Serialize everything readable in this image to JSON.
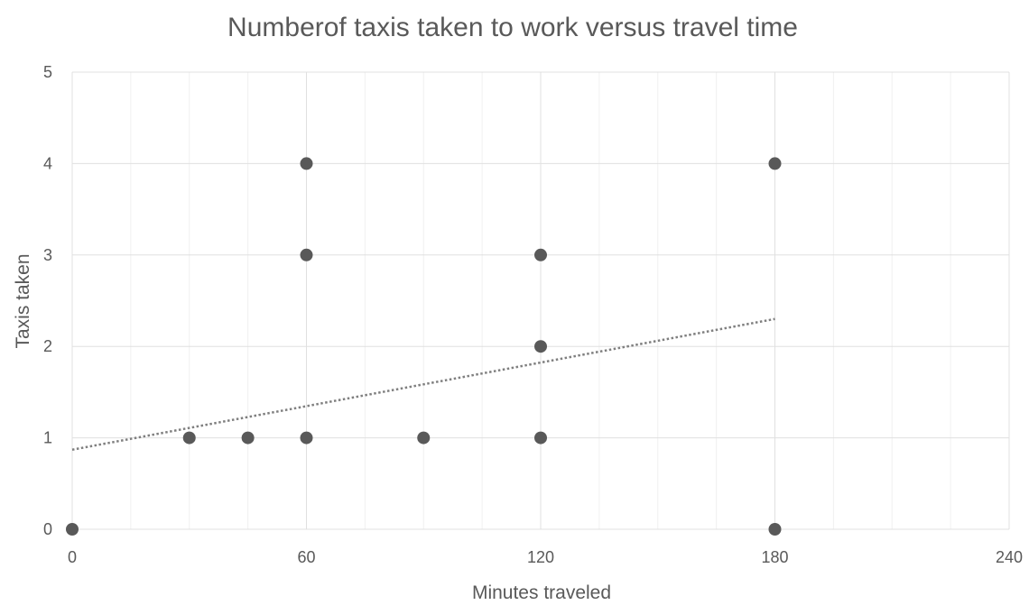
{
  "chart_data": {
    "type": "scatter",
    "title": "Numberof taxis taken to work versus travel time",
    "xlabel": "Minutes traveled",
    "ylabel": "Taxis taken",
    "xlim": [
      0,
      240
    ],
    "ylim": [
      0,
      5
    ],
    "x_ticks": [
      "0",
      "60",
      "120",
      "180",
      "240"
    ],
    "y_ticks": [
      "0",
      "1",
      "2",
      "3",
      "4",
      "5"
    ],
    "grid": true,
    "legend": "none",
    "colors": {
      "marker": "#595959",
      "trendline": "#7f7f7f",
      "grid": "#e0e0e0",
      "text": "#595959"
    },
    "series": [
      {
        "points": [
          {
            "x": 0,
            "y": 0
          },
          {
            "x": 30,
            "y": 1
          },
          {
            "x": 45,
            "y": 1
          },
          {
            "x": 60,
            "y": 1
          },
          {
            "x": 60,
            "y": 3
          },
          {
            "x": 60,
            "y": 4
          },
          {
            "x": 90,
            "y": 1
          },
          {
            "x": 120,
            "y": 1
          },
          {
            "x": 120,
            "y": 2
          },
          {
            "x": 120,
            "y": 3
          },
          {
            "x": 180,
            "y": 0
          },
          {
            "x": 180,
            "y": 4
          }
        ]
      }
    ],
    "trendline": {
      "type": "linear",
      "style": "dotted",
      "x": [
        0,
        180
      ],
      "y": [
        0.87,
        2.3
      ]
    }
  }
}
